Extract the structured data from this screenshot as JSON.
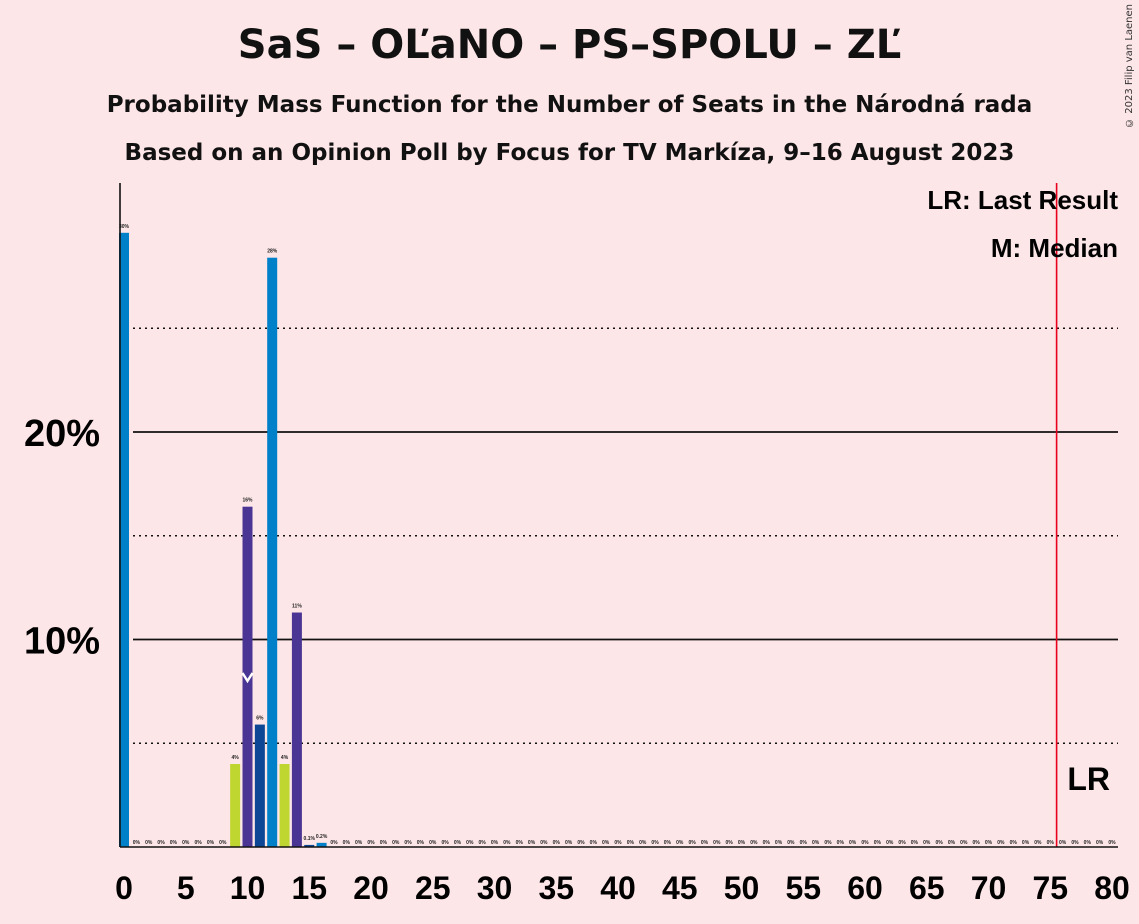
{
  "title": "SaS – OĽaNO – PS–SPOLU – ZĽ",
  "subtitle1": "Probability Mass Function for the Number of Seats in the Národná rada",
  "subtitle2": "Based on an Opinion Poll by Focus for TV Markíza, 9–16 August 2023",
  "copyright": "© 2023 Filip van Laenen",
  "legend": {
    "lr": "LR: Last Result",
    "m": "M: Median",
    "lr_mark": "LR"
  },
  "colors": {
    "sas": "#0080c8",
    "olano": "#bed62f",
    "ps": "#4a3594",
    "spolu": "#0c4694",
    "last_result": "#e8001c",
    "background": "#fde6e8"
  },
  "chart_data": {
    "type": "bar",
    "xlim": [
      0,
      80
    ],
    "ylim": [
      0,
      32
    ],
    "y_ticks": [
      {
        "value": 10,
        "label": "10%"
      },
      {
        "value": 20,
        "label": "20%"
      }
    ],
    "y_dotted": [
      5,
      15,
      25
    ],
    "x_ticks": [
      0,
      5,
      10,
      15,
      20,
      25,
      30,
      35,
      40,
      45,
      50,
      55,
      60,
      65,
      70,
      75,
      80
    ],
    "last_result": 76,
    "median": 10,
    "bars": [
      {
        "x": 0,
        "value": 29.6,
        "label": "30%",
        "color": "#0080c8"
      },
      {
        "x": 1,
        "value": 0,
        "label": "0%"
      },
      {
        "x": 2,
        "value": 0,
        "label": "0%"
      },
      {
        "x": 3,
        "value": 0,
        "label": "0%"
      },
      {
        "x": 4,
        "value": 0,
        "label": "0%"
      },
      {
        "x": 5,
        "value": 0,
        "label": "0%"
      },
      {
        "x": 6,
        "value": 0,
        "label": "0%"
      },
      {
        "x": 7,
        "value": 0,
        "label": "0%"
      },
      {
        "x": 8,
        "value": 0,
        "label": "0%"
      },
      {
        "x": 9,
        "value": 4.0,
        "label": "4%",
        "color": "#bed62f"
      },
      {
        "x": 10,
        "value": 16.4,
        "label": "16%",
        "color": "#4a3594"
      },
      {
        "x": 11,
        "value": 5.9,
        "label": "6%",
        "color": "#0c4694"
      },
      {
        "x": 12,
        "value": 28.4,
        "label": "28%",
        "color": "#0080c8"
      },
      {
        "x": 13,
        "value": 4.0,
        "label": "4%",
        "color": "#bed62f"
      },
      {
        "x": 14,
        "value": 11.3,
        "label": "11%",
        "color": "#4a3594"
      },
      {
        "x": 15,
        "value": 0.1,
        "label": "0.1%",
        "color": "#0c4694"
      },
      {
        "x": 16,
        "value": 0.2,
        "label": "0.2%",
        "color": "#0080c8"
      },
      {
        "x": 17,
        "value": 0,
        "label": "0%"
      },
      {
        "x": 18,
        "value": 0,
        "label": "0%"
      },
      {
        "x": 19,
        "value": 0,
        "label": "0%"
      },
      {
        "x": 20,
        "value": 0,
        "label": "0%"
      },
      {
        "x": 21,
        "value": 0,
        "label": "0%"
      },
      {
        "x": 22,
        "value": 0,
        "label": "0%"
      },
      {
        "x": 23,
        "value": 0,
        "label": "0%"
      },
      {
        "x": 24,
        "value": 0,
        "label": "0%"
      },
      {
        "x": 25,
        "value": 0,
        "label": "0%"
      },
      {
        "x": 26,
        "value": 0,
        "label": "0%"
      },
      {
        "x": 27,
        "value": 0,
        "label": "0%"
      },
      {
        "x": 28,
        "value": 0,
        "label": "0%"
      },
      {
        "x": 29,
        "value": 0,
        "label": "0%"
      },
      {
        "x": 30,
        "value": 0,
        "label": "0%"
      },
      {
        "x": 31,
        "value": 0,
        "label": "0%"
      },
      {
        "x": 32,
        "value": 0,
        "label": "0%"
      },
      {
        "x": 33,
        "value": 0,
        "label": "0%"
      },
      {
        "x": 34,
        "value": 0,
        "label": "0%"
      },
      {
        "x": 35,
        "value": 0,
        "label": "0%"
      },
      {
        "x": 36,
        "value": 0,
        "label": "0%"
      },
      {
        "x": 37,
        "value": 0,
        "label": "0%"
      },
      {
        "x": 38,
        "value": 0,
        "label": "0%"
      },
      {
        "x": 39,
        "value": 0,
        "label": "0%"
      },
      {
        "x": 40,
        "value": 0,
        "label": "0%"
      },
      {
        "x": 41,
        "value": 0,
        "label": "0%"
      },
      {
        "x": 42,
        "value": 0,
        "label": "0%"
      },
      {
        "x": 43,
        "value": 0,
        "label": "0%"
      },
      {
        "x": 44,
        "value": 0,
        "label": "0%"
      },
      {
        "x": 45,
        "value": 0,
        "label": "0%"
      },
      {
        "x": 46,
        "value": 0,
        "label": "0%"
      },
      {
        "x": 47,
        "value": 0,
        "label": "0%"
      },
      {
        "x": 48,
        "value": 0,
        "label": "0%"
      },
      {
        "x": 49,
        "value": 0,
        "label": "0%"
      },
      {
        "x": 50,
        "value": 0,
        "label": "0%"
      },
      {
        "x": 51,
        "value": 0,
        "label": "0%"
      },
      {
        "x": 52,
        "value": 0,
        "label": "0%"
      },
      {
        "x": 53,
        "value": 0,
        "label": "0%"
      },
      {
        "x": 54,
        "value": 0,
        "label": "0%"
      },
      {
        "x": 55,
        "value": 0,
        "label": "0%"
      },
      {
        "x": 56,
        "value": 0,
        "label": "0%"
      },
      {
        "x": 57,
        "value": 0,
        "label": "0%"
      },
      {
        "x": 58,
        "value": 0,
        "label": "0%"
      },
      {
        "x": 59,
        "value": 0,
        "label": "0%"
      },
      {
        "x": 60,
        "value": 0,
        "label": "0%"
      },
      {
        "x": 61,
        "value": 0,
        "label": "0%"
      },
      {
        "x": 62,
        "value": 0,
        "label": "0%"
      },
      {
        "x": 63,
        "value": 0,
        "label": "0%"
      },
      {
        "x": 64,
        "value": 0,
        "label": "0%"
      },
      {
        "x": 65,
        "value": 0,
        "label": "0%"
      },
      {
        "x": 66,
        "value": 0,
        "label": "0%"
      },
      {
        "x": 67,
        "value": 0,
        "label": "0%"
      },
      {
        "x": 68,
        "value": 0,
        "label": "0%"
      },
      {
        "x": 69,
        "value": 0,
        "label": "0%"
      },
      {
        "x": 70,
        "value": 0,
        "label": "0%"
      },
      {
        "x": 71,
        "value": 0,
        "label": "0%"
      },
      {
        "x": 72,
        "value": 0,
        "label": "0%"
      },
      {
        "x": 73,
        "value": 0,
        "label": "0%"
      },
      {
        "x": 74,
        "value": 0,
        "label": "0%"
      },
      {
        "x": 75,
        "value": 0,
        "label": "0%"
      },
      {
        "x": 76,
        "value": 0,
        "label": "0%"
      },
      {
        "x": 77,
        "value": 0,
        "label": "0%"
      },
      {
        "x": 78,
        "value": 0,
        "label": "0%"
      },
      {
        "x": 79,
        "value": 0,
        "label": "0%"
      },
      {
        "x": 80,
        "value": 0,
        "label": "0%"
      }
    ]
  }
}
